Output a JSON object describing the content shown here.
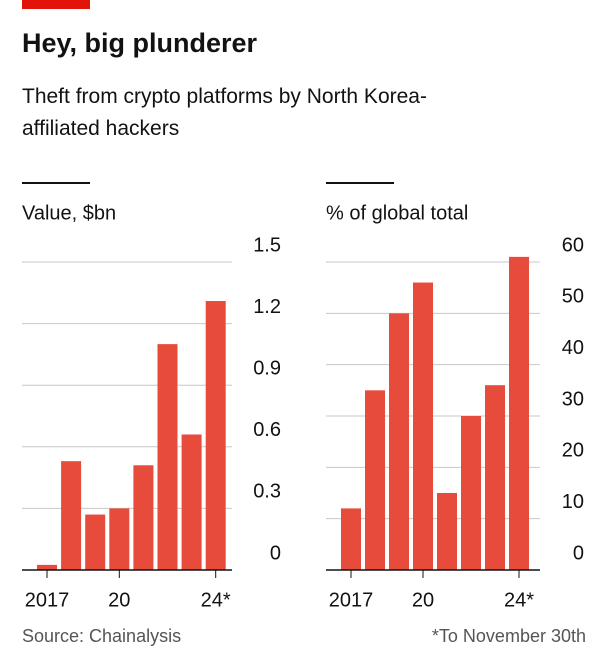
{
  "title": "Hey, big plunderer",
  "subtitle": "Theft from crypto platforms by North Korea-affiliated hackers",
  "source": "Source: Chainalysis",
  "note": "*To November 30th",
  "chart_data": [
    {
      "type": "bar",
      "axis_label": "Value, $bn",
      "categories": [
        "2017",
        null,
        null,
        "20",
        null,
        null,
        null,
        "24*"
      ],
      "values": [
        0.025,
        0.53,
        0.27,
        0.3,
        0.51,
        1.1,
        0.66,
        1.31
      ],
      "color": "#e64b3c",
      "ylim": [
        0,
        1.5
      ],
      "yticks": [
        0,
        0.3,
        0.6,
        0.9,
        1.2,
        1.5
      ],
      "grid": true
    },
    {
      "type": "bar",
      "axis_label": "% of global total",
      "categories": [
        "2017",
        null,
        null,
        "20",
        null,
        null,
        null,
        "24*"
      ],
      "values": [
        12,
        35,
        50,
        56,
        15,
        30,
        36,
        61
      ],
      "color": "#e64b3c",
      "ylim": [
        0,
        60
      ],
      "yticks": [
        0,
        10,
        20,
        30,
        40,
        50,
        60
      ],
      "grid": true
    }
  ]
}
